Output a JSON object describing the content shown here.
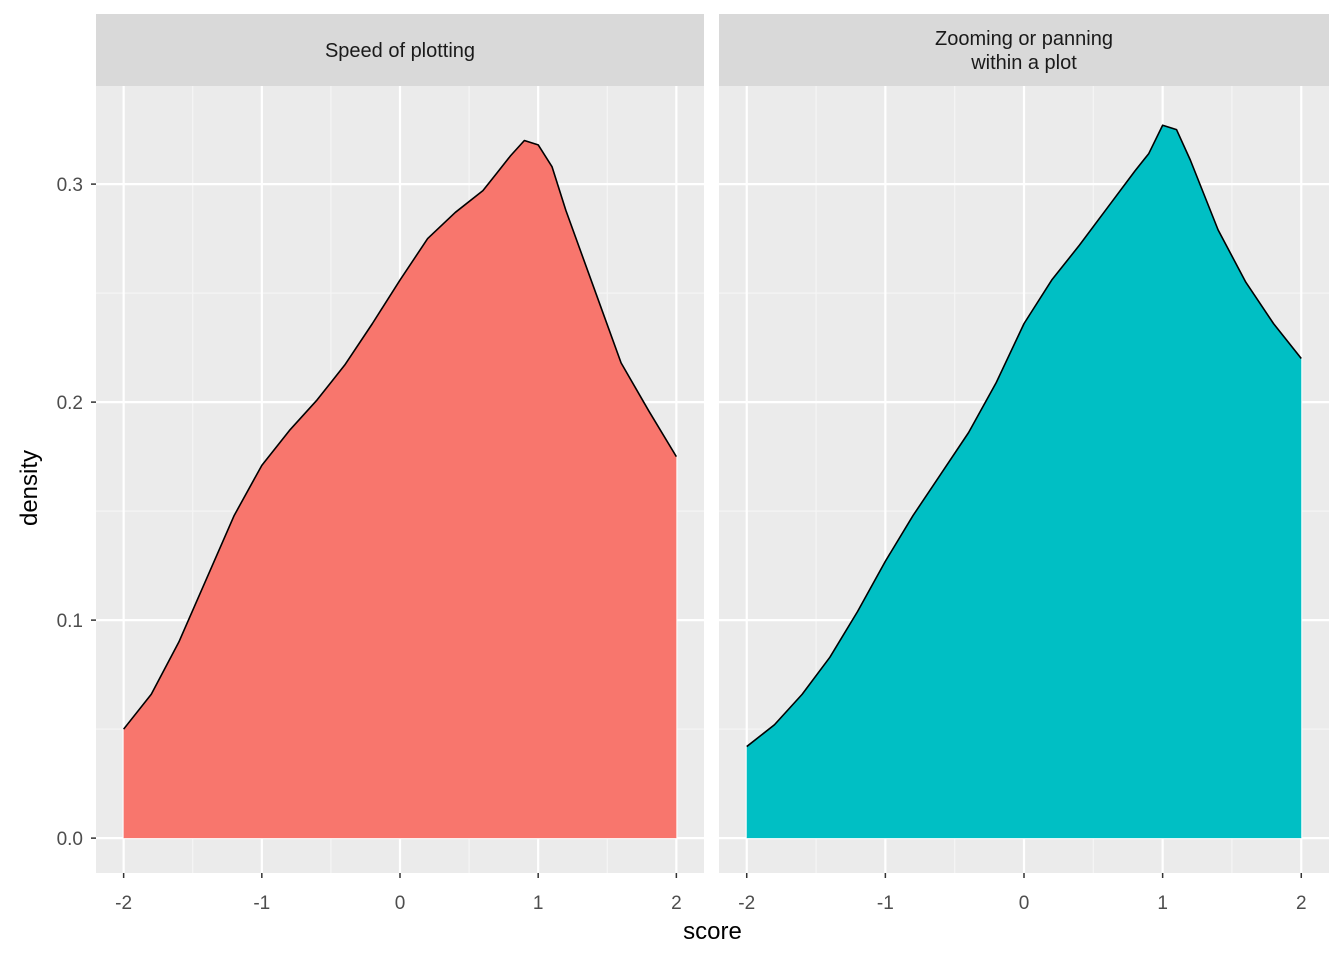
{
  "chart_data": {
    "type": "area",
    "subtype": "faceted density",
    "xlabel": "score",
    "ylabel": "density",
    "xlim": [
      -2.2,
      2.2
    ],
    "ylim": [
      -0.016,
      0.345
    ],
    "x_ticks": [
      -2,
      -1,
      0,
      1,
      2
    ],
    "x_tick_labels": [
      "-2",
      "-1",
      "0",
      "1",
      "2"
    ],
    "y_ticks": [
      0.0,
      0.1,
      0.2,
      0.3
    ],
    "y_tick_labels": [
      "0.0",
      "0.1",
      "0.2",
      "0.3"
    ],
    "grid": true,
    "legend": "none",
    "panels": [
      {
        "strip_lines": [
          "Speed of plotting"
        ],
        "fill": "#F8766D",
        "x": [
          -2.0,
          -1.8,
          -1.6,
          -1.4,
          -1.2,
          -1.0,
          -0.8,
          -0.6,
          -0.4,
          -0.2,
          0.0,
          0.2,
          0.4,
          0.6,
          0.7,
          0.8,
          0.9,
          1.0,
          1.1,
          1.2,
          1.4,
          1.6,
          1.8,
          2.0
        ],
        "y": [
          0.05,
          0.066,
          0.09,
          0.119,
          0.148,
          0.171,
          0.187,
          0.201,
          0.217,
          0.236,
          0.256,
          0.275,
          0.287,
          0.297,
          0.305,
          0.313,
          0.32,
          0.318,
          0.308,
          0.288,
          0.253,
          0.218,
          0.196,
          0.175
        ]
      },
      {
        "strip_lines": [
          "Zooming or panning",
          "within a plot"
        ],
        "fill": "#00BFC4",
        "x": [
          -2.0,
          -1.8,
          -1.6,
          -1.4,
          -1.2,
          -1.0,
          -0.8,
          -0.6,
          -0.4,
          -0.2,
          0.0,
          0.2,
          0.4,
          0.6,
          0.8,
          0.9,
          1.0,
          1.1,
          1.2,
          1.4,
          1.6,
          1.8,
          2.0
        ],
        "y": [
          0.042,
          0.052,
          0.066,
          0.083,
          0.104,
          0.127,
          0.148,
          0.167,
          0.186,
          0.209,
          0.236,
          0.256,
          0.272,
          0.289,
          0.306,
          0.314,
          0.327,
          0.325,
          0.311,
          0.279,
          0.255,
          0.236,
          0.22
        ]
      }
    ],
    "colors": {
      "panel_bg": "#EBEBEB",
      "strip_bg": "#D9D9D9",
      "grid_major": "#FFFFFF",
      "grid_minor": "#F5F5F5",
      "outline": "#000000"
    }
  }
}
